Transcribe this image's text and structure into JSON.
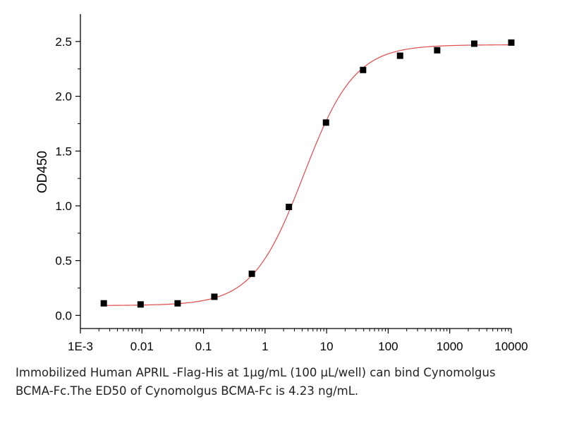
{
  "chart_data": {
    "type": "scatter",
    "xscale": "log",
    "ylabel": "OD450",
    "xlabel": "",
    "xlim": [
      0.001,
      10000
    ],
    "ylim": [
      -0.12,
      2.75
    ],
    "xticks": [
      0.001,
      0.01,
      0.1,
      1,
      10,
      100,
      1000,
      10000
    ],
    "xtick_labels": [
      "1E-3",
      "0.01",
      "0.1",
      "1",
      "10",
      "100",
      "1000",
      "10000"
    ],
    "yticks": [
      0.0,
      0.5,
      1.0,
      1.5,
      2.0,
      2.5
    ],
    "ytick_labels": [
      "0.0",
      "0.5",
      "1.0",
      "1.5",
      "2.0",
      "2.5"
    ],
    "grid": false,
    "legend": "none",
    "series": [
      {
        "x": [
          0.0024,
          0.0095,
          0.038,
          0.15,
          0.61,
          2.44,
          9.77,
          39.1,
          156,
          625,
          2500,
          10000
        ],
        "y": [
          0.11,
          0.1,
          0.11,
          0.17,
          0.38,
          0.99,
          1.76,
          2.24,
          2.37,
          2.42,
          2.48,
          2.49
        ],
        "marker": "square",
        "color": "#000000"
      }
    ],
    "fit": {
      "model": "4PL",
      "bottom": 0.09,
      "top": 2.47,
      "ec50": 4.23,
      "hill": 1.05,
      "color": "#e04a4a"
    }
  },
  "caption": {
    "line1": "Immobilized Human APRIL -Flag-His at 1μg/mL (100 μL/well) can bind Cynomolgus",
    "line2": "BCMA-Fc.The ED50 of Cynomolgus BCMA-Fc is 4.23 ng/mL."
  }
}
